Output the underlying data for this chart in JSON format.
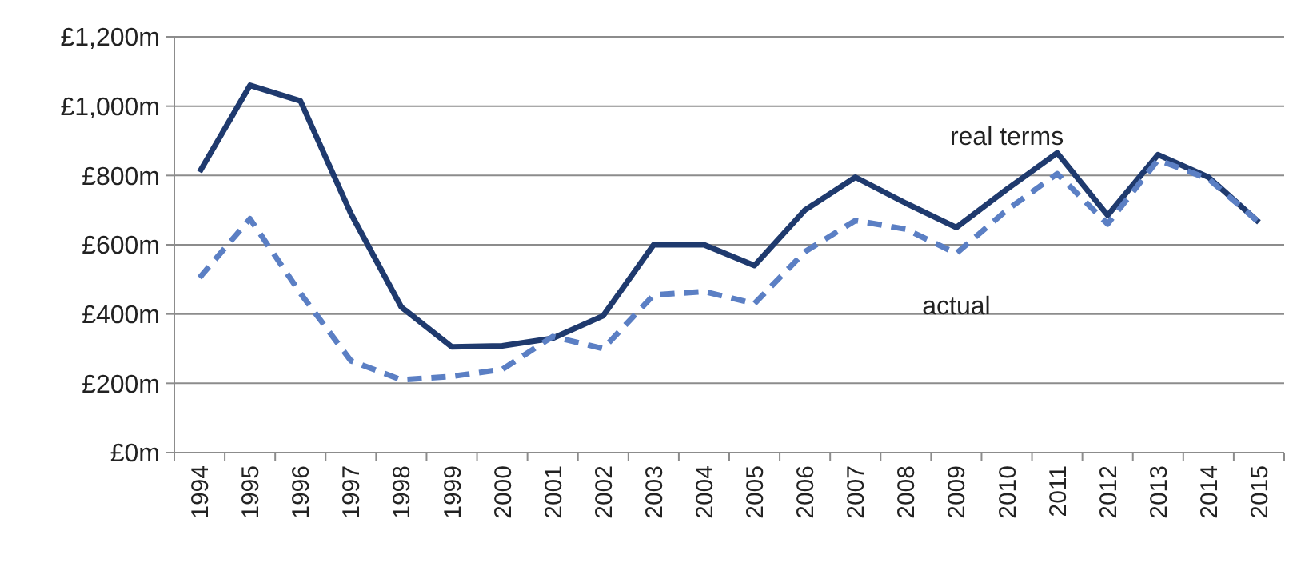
{
  "chart_data": {
    "type": "line",
    "categories": [
      "1994",
      "1995",
      "1996",
      "1997",
      "1998",
      "1999",
      "2000",
      "2001",
      "2002",
      "2003",
      "2004",
      "2005",
      "2006",
      "2007",
      "2008",
      "2009",
      "2010",
      "2011",
      "2012",
      "2013",
      "2014",
      "2015"
    ],
    "series": [
      {
        "name": "real terms",
        "color": "#1f3a6e",
        "line_style": "solid",
        "values": [
          810,
          1060,
          1015,
          690,
          420,
          305,
          308,
          330,
          395,
          600,
          600,
          540,
          700,
          795,
          720,
          650,
          760,
          865,
          685,
          860,
          795,
          665
        ]
      },
      {
        "name": "actual",
        "color": "#5b7fc4",
        "line_style": "dashed",
        "values": [
          505,
          675,
          460,
          265,
          210,
          220,
          240,
          335,
          300,
          455,
          465,
          430,
          580,
          670,
          645,
          575,
          700,
          805,
          660,
          845,
          790,
          665
        ]
      }
    ],
    "ylim": [
      0,
      1200
    ],
    "yticks": [
      {
        "value": 0,
        "label": "£0m"
      },
      {
        "value": 200,
        "label": "£200m"
      },
      {
        "value": 400,
        "label": "£400m"
      },
      {
        "value": 600,
        "label": "£600m"
      },
      {
        "value": 800,
        "label": "£800m"
      },
      {
        "value": 1000,
        "label": "£1,000m"
      },
      {
        "value": 1200,
        "label": "£1,200m"
      }
    ],
    "grid": "y",
    "marker": "none"
  }
}
